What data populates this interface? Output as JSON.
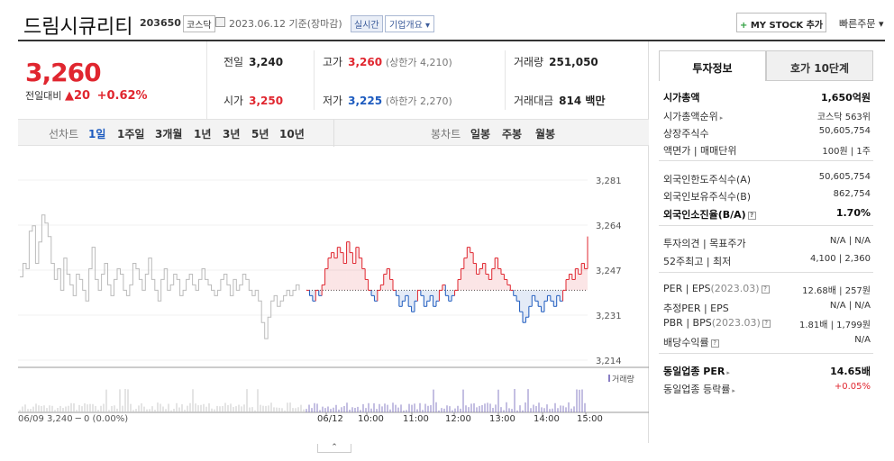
{
  "header": {
    "title": "드림시큐리티",
    "code": "203650",
    "market_badge": "코스닥",
    "date_text": "2023.06.12 기준(장마감)",
    "realtime_label": "실시간",
    "company_label": "기업개요 ▾",
    "mystock_label": "MY STOCK 추가",
    "quick_order_label": "빠른주문 ▾"
  },
  "quote": {
    "price": "3,260",
    "change_label": "전일대비",
    "change_value": "▲20",
    "change_pct": "+0.62%"
  },
  "stats": {
    "prev_close": {
      "label": "전일",
      "value": "3,240"
    },
    "open": {
      "label": "시가",
      "value": "3,250"
    },
    "high": {
      "label": "고가",
      "value": "3,260",
      "sub": "(상한가 4,210)"
    },
    "low": {
      "label": "저가",
      "value": "3,225",
      "sub": "(하한가 2,270)"
    },
    "volume": {
      "label": "거래량",
      "value": "251,050"
    },
    "turnover": {
      "label": "거래대금",
      "value": "814 백만"
    }
  },
  "chart_tabs": {
    "line_chart_label": "선차트",
    "periods": [
      "1일",
      "1주일",
      "3개월",
      "1년",
      "3년",
      "5년",
      "10년"
    ],
    "selected_period": "1일",
    "candle_chart_label": "봉차트",
    "candle_periods": [
      "일봉",
      "주봉",
      "월봉"
    ]
  },
  "chart_data": {
    "type": "line",
    "title": "",
    "y_ticks": [
      "3,281",
      "3,264",
      "3,247",
      "3,231",
      "3,214"
    ],
    "ylim": [
      3214,
      3281
    ],
    "baseline": 3240,
    "volume_label": "거래량",
    "prev_session_label": "06/09  3,240 ─ 0 (0.00%)",
    "x_ticks": [
      "06/12",
      "10:00",
      "11:00",
      "12:00",
      "13:00",
      "14:00",
      "15:00"
    ],
    "prev_day_series": [
      3245,
      3250,
      3248,
      3262,
      3264,
      3250,
      3258,
      3268,
      3265,
      3260,
      3250,
      3244,
      3248,
      3240,
      3252,
      3246,
      3242,
      3238,
      3246,
      3244,
      3240,
      3236,
      3248,
      3256,
      3244,
      3240,
      3246,
      3250,
      3242,
      3238,
      3244,
      3248,
      3246,
      3240,
      3238,
      3242,
      3250,
      3248,
      3244,
      3240,
      3246,
      3252,
      3244,
      3240,
      3236,
      3244,
      3248,
      3240,
      3242,
      3246,
      3244,
      3238,
      3240,
      3244,
      3246,
      3242,
      3240,
      3244,
      3248,
      3244,
      3242,
      3240,
      3238,
      3240,
      3244,
      3246,
      3242,
      3238,
      3244,
      3240,
      3242,
      3246,
      3244,
      3240,
      3238,
      3240,
      3236,
      3228,
      3222,
      3230,
      3236,
      3238,
      3234,
      3236,
      3238,
      3240,
      3238,
      3240,
      3242,
      3240
    ],
    "today_series": [
      3240,
      3238,
      3236,
      3240,
      3238,
      3242,
      3248,
      3252,
      3254,
      3252,
      3256,
      3254,
      3250,
      3258,
      3254,
      3250,
      3256,
      3252,
      3248,
      3244,
      3240,
      3238,
      3236,
      3240,
      3242,
      3246,
      3248,
      3244,
      3240,
      3238,
      3234,
      3236,
      3238,
      3234,
      3232,
      3236,
      3240,
      3238,
      3234,
      3236,
      3238,
      3234,
      3236,
      3240,
      3242,
      3238,
      3236,
      3238,
      3240,
      3244,
      3248,
      3252,
      3256,
      3254,
      3250,
      3246,
      3248,
      3250,
      3246,
      3244,
      3248,
      3252,
      3248,
      3246,
      3244,
      3242,
      3240,
      3238,
      3236,
      3232,
      3228,
      3230,
      3234,
      3238,
      3236,
      3234,
      3232,
      3236,
      3238,
      3236,
      3234,
      3238,
      3236,
      3240,
      3244,
      3246,
      3244,
      3248,
      3246,
      3250,
      3248,
      3260
    ]
  },
  "sidebar": {
    "tab_info": "투자정보",
    "tab_orderbook": "호가 10단계",
    "rows": [
      {
        "key": "시가총액",
        "value": "1,650억원",
        "bold": true
      },
      {
        "key": "시가총액순위",
        "value": "코스닥 563위"
      },
      {
        "key": "상장주식수",
        "value": "50,605,754"
      },
      {
        "key": "액면가 | 매매단위",
        "value": "100원 | 1주"
      },
      {
        "key": "외국인한도주식수(A)",
        "value": "50,605,754"
      },
      {
        "key": "외국인보유주식수(B)",
        "value": "862,754"
      },
      {
        "key": "외국인소진율(B/A)",
        "value": "1.70%",
        "bold": true
      },
      {
        "key": "투자의견 | 목표주가",
        "value": "N/A | N/A"
      },
      {
        "key": "52주최고 | 최저",
        "value": "4,100 | 2,360"
      },
      {
        "key": "PER | EPS",
        "date": "(2023.03)",
        "value": "12.68배 | 257원"
      },
      {
        "key": "추정PER | EPS",
        "value": "N/A | N/A"
      },
      {
        "key": "PBR | BPS",
        "date": "(2023.03)",
        "value": "1.81배 | 1,799원"
      },
      {
        "key": "배당수익률",
        "value": "N/A"
      },
      {
        "key": "동일업종 PER",
        "value": "14.65배",
        "bold": true
      },
      {
        "key": "동일업종 등락률",
        "value": "+0.05%",
        "red": true
      }
    ]
  },
  "colors": {
    "up": "#e0262f",
    "down": "#1d5bbf",
    "neutral": "#bbbbbb"
  }
}
